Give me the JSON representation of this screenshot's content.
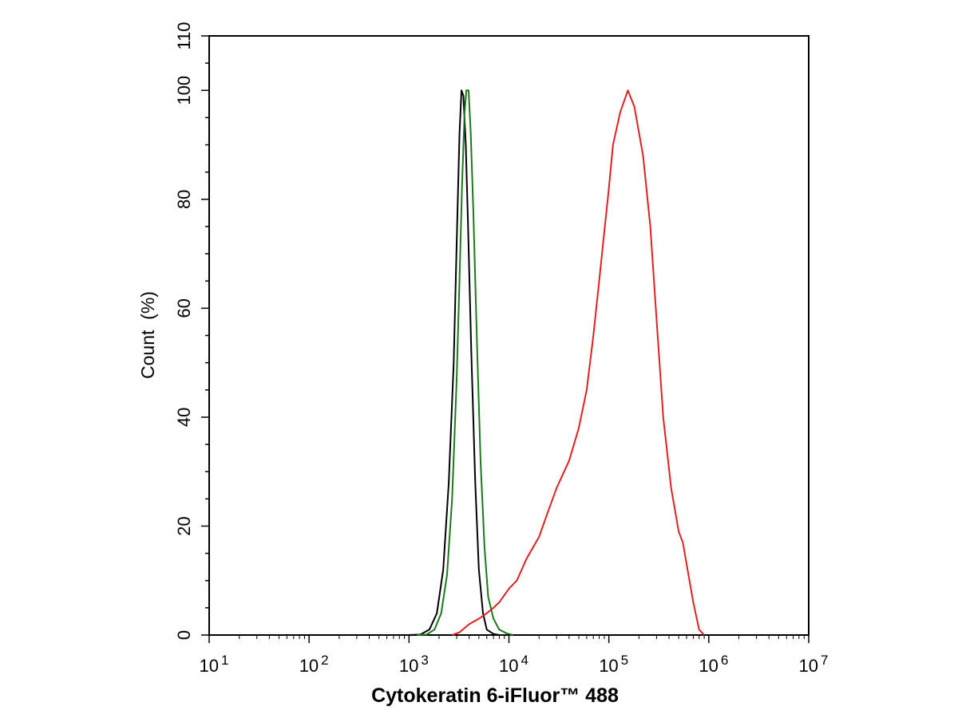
{
  "chart_data": {
    "type": "line",
    "title": "",
    "xlabel": "Cytokeratin 6-iFluor™ 488",
    "ylabel": "Count  (%)",
    "x_scale": "log",
    "xlim": [
      10,
      10000000
    ],
    "ylim": [
      0,
      110
    ],
    "grid": false,
    "legend": "none",
    "x_ticks": [
      {
        "base": "10",
        "exp": "1",
        "value": 10
      },
      {
        "base": "10",
        "exp": "2",
        "value": 100
      },
      {
        "base": "10",
        "exp": "3",
        "value": 1000
      },
      {
        "base": "10",
        "exp": "4",
        "value": 10000
      },
      {
        "base": "10",
        "exp": "5",
        "value": 100000
      },
      {
        "base": "10",
        "exp": "6",
        "value": 1000000
      },
      {
        "base": "10",
        "exp": "7",
        "value": 10000000
      }
    ],
    "y_ticks": [
      {
        "label": "0",
        "value": 0
      },
      {
        "label": "20",
        "value": 20
      },
      {
        "label": "40",
        "value": 40
      },
      {
        "label": "60",
        "value": 60
      },
      {
        "label": "80",
        "value": 80
      },
      {
        "label": "100",
        "value": 100
      },
      {
        "label": "110",
        "value": 110
      }
    ],
    "series": [
      {
        "color": "#000000",
        "points": [
          [
            1000,
            0
          ],
          [
            1300,
            0.1
          ],
          [
            1600,
            1
          ],
          [
            1900,
            4
          ],
          [
            2200,
            12
          ],
          [
            2500,
            28
          ],
          [
            2800,
            50
          ],
          [
            3000,
            72
          ],
          [
            3200,
            92
          ],
          [
            3350,
            100
          ],
          [
            3500,
            99
          ],
          [
            3700,
            90
          ],
          [
            3900,
            75
          ],
          [
            4200,
            52
          ],
          [
            4600,
            28
          ],
          [
            5000,
            12
          ],
          [
            5500,
            4
          ],
          [
            6000,
            1
          ],
          [
            7000,
            0.2
          ],
          [
            8000,
            0
          ]
        ]
      },
      {
        "color": "#1a7a1a",
        "points": [
          [
            1200,
            0
          ],
          [
            1500,
            0.1
          ],
          [
            1800,
            1
          ],
          [
            2100,
            4
          ],
          [
            2400,
            11
          ],
          [
            2700,
            25
          ],
          [
            3000,
            47
          ],
          [
            3200,
            65
          ],
          [
            3400,
            83
          ],
          [
            3600,
            96
          ],
          [
            3750,
            100
          ],
          [
            3950,
            100
          ],
          [
            4150,
            92
          ],
          [
            4400,
            78
          ],
          [
            4800,
            53
          ],
          [
            5200,
            32
          ],
          [
            5700,
            16
          ],
          [
            6200,
            7
          ],
          [
            7000,
            3
          ],
          [
            8000,
            1
          ],
          [
            9500,
            0.3
          ],
          [
            11000,
            0
          ]
        ]
      },
      {
        "color": "#e02020",
        "points": [
          [
            2700,
            0
          ],
          [
            3200,
            0.5
          ],
          [
            4000,
            2
          ],
          [
            5000,
            3
          ],
          [
            6000,
            4
          ],
          [
            7000,
            5
          ],
          [
            8000,
            6
          ],
          [
            10000,
            8.5
          ],
          [
            12000,
            10
          ],
          [
            15000,
            14
          ],
          [
            20000,
            18
          ],
          [
            25000,
            23
          ],
          [
            30000,
            27
          ],
          [
            40000,
            32
          ],
          [
            50000,
            38
          ],
          [
            60000,
            45
          ],
          [
            70000,
            55
          ],
          [
            80000,
            65
          ],
          [
            90000,
            74
          ],
          [
            100000,
            82
          ],
          [
            110000,
            90
          ],
          [
            130000,
            96
          ],
          [
            155000,
            100
          ],
          [
            180000,
            97
          ],
          [
            220000,
            88
          ],
          [
            260000,
            75
          ],
          [
            300000,
            58
          ],
          [
            350000,
            40
          ],
          [
            420000,
            27
          ],
          [
            500000,
            19
          ],
          [
            550000,
            17
          ],
          [
            600000,
            13
          ],
          [
            700000,
            6
          ],
          [
            800000,
            1
          ],
          [
            900000,
            0
          ]
        ]
      }
    ]
  }
}
